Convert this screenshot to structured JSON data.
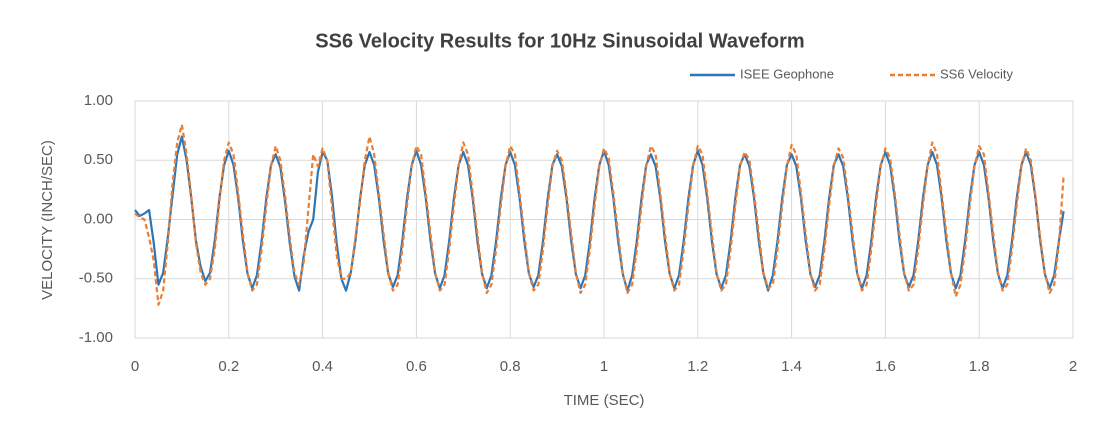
{
  "chart_data": {
    "type": "line",
    "title": "SS6 Velocity Results for 10Hz Sinusoidal Waveform",
    "x_label": "TIME (SEC)",
    "y_label": "VELOCITY (INCH/SEC)",
    "xlim": [
      0,
      2
    ],
    "ylim": [
      -1,
      1
    ],
    "xticks": [
      0,
      0.2,
      0.4,
      0.6,
      0.8,
      1,
      1.2,
      1.4,
      1.6,
      1.8,
      2
    ],
    "yticks": [
      {
        "value": -1,
        "label": "-1.00"
      },
      {
        "value": -0.5,
        "label": "-0.50"
      },
      {
        "value": 0,
        "label": "0.00"
      },
      {
        "value": 0.5,
        "label": "0.50"
      },
      {
        "value": 1,
        "label": "1.00"
      }
    ],
    "grid": true,
    "legend": "top-right",
    "x": [
      0,
      0.01,
      0.02,
      0.03,
      0.04,
      0.05,
      0.06,
      0.07,
      0.08,
      0.09,
      0.1,
      0.11,
      0.12,
      0.13,
      0.14,
      0.15,
      0.16,
      0.17,
      0.18,
      0.19,
      0.2,
      0.21,
      0.22,
      0.23,
      0.24,
      0.25,
      0.26,
      0.27,
      0.28,
      0.29,
      0.3,
      0.31,
      0.32,
      0.33,
      0.34,
      0.35,
      0.36,
      0.37,
      0.38,
      0.39,
      0.4,
      0.41,
      0.42,
      0.43,
      0.44,
      0.45,
      0.46,
      0.47,
      0.48,
      0.49,
      0.5,
      0.51,
      0.52,
      0.53,
      0.54,
      0.55,
      0.56,
      0.57,
      0.58,
      0.59,
      0.6,
      0.61,
      0.62,
      0.63,
      0.64,
      0.65,
      0.66,
      0.67,
      0.68,
      0.69,
      0.7,
      0.71,
      0.72,
      0.73,
      0.74,
      0.75,
      0.76,
      0.77,
      0.78,
      0.79,
      0.8,
      0.81,
      0.82,
      0.83,
      0.84,
      0.85,
      0.86,
      0.87,
      0.88,
      0.89,
      0.9,
      0.91,
      0.92,
      0.93,
      0.94,
      0.95,
      0.96,
      0.97,
      0.98,
      0.99,
      1,
      1.01,
      1.02,
      1.03,
      1.04,
      1.05,
      1.06,
      1.07,
      1.08,
      1.09,
      1.1,
      1.11,
      1.12,
      1.13,
      1.14,
      1.15,
      1.16,
      1.17,
      1.18,
      1.19,
      1.2,
      1.21,
      1.22,
      1.23,
      1.24,
      1.25,
      1.26,
      1.27,
      1.28,
      1.29,
      1.3,
      1.31,
      1.32,
      1.33,
      1.34,
      1.35,
      1.36,
      1.37,
      1.38,
      1.39,
      1.4,
      1.41,
      1.42,
      1.43,
      1.44,
      1.45,
      1.46,
      1.47,
      1.48,
      1.49,
      1.5,
      1.51,
      1.52,
      1.53,
      1.54,
      1.55,
      1.56,
      1.57,
      1.58,
      1.59,
      1.6,
      1.61,
      1.62,
      1.63,
      1.64,
      1.65,
      1.66,
      1.67,
      1.68,
      1.69,
      1.7,
      1.71,
      1.72,
      1.73,
      1.74,
      1.75,
      1.76,
      1.77,
      1.78,
      1.79,
      1.8,
      1.81,
      1.82,
      1.83,
      1.84,
      1.85,
      1.86,
      1.87,
      1.88,
      1.89,
      1.9,
      1.91,
      1.92,
      1.93,
      1.94,
      1.95,
      1.96,
      1.97,
      1.98
    ],
    "series": [
      {
        "name": "ISEE Geophone",
        "color": "#2e75b6",
        "dash": false,
        "values": [
          0.08,
          0.03,
          0.05,
          0.08,
          -0.2,
          -0.55,
          -0.45,
          -0.15,
          0.2,
          0.55,
          0.7,
          0.5,
          0.18,
          -0.18,
          -0.4,
          -0.52,
          -0.45,
          -0.18,
          0.18,
          0.46,
          0.58,
          0.46,
          0.18,
          -0.18,
          -0.46,
          -0.58,
          -0.47,
          -0.18,
          0.18,
          0.46,
          0.55,
          0.44,
          0.15,
          -0.2,
          -0.48,
          -0.6,
          -0.3,
          -0.1,
          0,
          0.4,
          0.57,
          0.5,
          0.2,
          -0.2,
          -0.5,
          -0.6,
          -0.45,
          -0.18,
          0.18,
          0.46,
          0.57,
          0.46,
          0.18,
          -0.18,
          -0.46,
          -0.57,
          -0.47,
          -0.18,
          0.18,
          0.46,
          0.58,
          0.46,
          0.18,
          -0.18,
          -0.46,
          -0.58,
          -0.47,
          -0.18,
          0.18,
          0.46,
          0.57,
          0.46,
          0.18,
          -0.18,
          -0.46,
          -0.58,
          -0.47,
          -0.18,
          0.18,
          0.46,
          0.57,
          0.46,
          0.18,
          -0.18,
          -0.46,
          -0.57,
          -0.47,
          -0.18,
          0.18,
          0.46,
          0.55,
          0.45,
          0.18,
          -0.18,
          -0.46,
          -0.58,
          -0.47,
          -0.18,
          0.18,
          0.46,
          0.58,
          0.46,
          0.18,
          -0.18,
          -0.46,
          -0.6,
          -0.47,
          -0.18,
          0.18,
          0.46,
          0.55,
          0.45,
          0.18,
          -0.18,
          -0.46,
          -0.58,
          -0.47,
          -0.18,
          0.18,
          0.46,
          0.58,
          0.46,
          0.18,
          -0.18,
          -0.46,
          -0.58,
          -0.47,
          -0.18,
          0.18,
          0.46,
          0.55,
          0.45,
          0.18,
          -0.18,
          -0.46,
          -0.6,
          -0.47,
          -0.18,
          0.18,
          0.46,
          0.55,
          0.45,
          0.18,
          -0.18,
          -0.46,
          -0.57,
          -0.47,
          -0.18,
          0.18,
          0.46,
          0.55,
          0.45,
          0.18,
          -0.18,
          -0.46,
          -0.58,
          -0.47,
          -0.18,
          0.18,
          0.46,
          0.57,
          0.46,
          0.18,
          -0.18,
          -0.46,
          -0.57,
          -0.47,
          -0.18,
          0.18,
          0.46,
          0.57,
          0.46,
          0.18,
          -0.18,
          -0.46,
          -0.58,
          -0.47,
          -0.18,
          0.18,
          0.46,
          0.57,
          0.46,
          0.18,
          -0.18,
          -0.46,
          -0.58,
          -0.47,
          -0.18,
          0.18,
          0.46,
          0.57,
          0.46,
          0.18,
          -0.18,
          -0.46,
          -0.58,
          -0.47,
          -0.18,
          0.07
        ]
      },
      {
        "name": "SS6 Velocity",
        "color": "#ed7d31",
        "dash": true,
        "values": [
          0.05,
          0.02,
          0,
          -0.15,
          -0.35,
          -0.72,
          -0.6,
          -0.2,
          0.3,
          0.65,
          0.8,
          0.55,
          0.2,
          -0.2,
          -0.45,
          -0.55,
          -0.5,
          -0.25,
          0.15,
          0.5,
          0.65,
          0.55,
          0.22,
          -0.12,
          -0.45,
          -0.6,
          -0.55,
          -0.25,
          0.12,
          0.45,
          0.62,
          0.5,
          0.2,
          -0.15,
          -0.45,
          -0.55,
          -0.35,
          0.1,
          0.55,
          0.45,
          0.6,
          0.5,
          0.1,
          -0.3,
          -0.5,
          -0.5,
          -0.45,
          -0.15,
          0.15,
          0.5,
          0.7,
          0.55,
          0.22,
          -0.12,
          -0.45,
          -0.6,
          -0.55,
          -0.25,
          0.12,
          0.45,
          0.62,
          0.55,
          0.22,
          -0.12,
          -0.45,
          -0.6,
          -0.55,
          -0.25,
          0.12,
          0.45,
          0.65,
          0.55,
          0.22,
          -0.12,
          -0.45,
          -0.62,
          -0.55,
          -0.25,
          0.12,
          0.45,
          0.62,
          0.55,
          0.22,
          -0.12,
          -0.45,
          -0.6,
          -0.55,
          -0.25,
          0.12,
          0.45,
          0.58,
          0.5,
          0.22,
          -0.12,
          -0.45,
          -0.62,
          -0.55,
          -0.25,
          0.12,
          0.45,
          0.6,
          0.52,
          0.22,
          -0.12,
          -0.45,
          -0.62,
          -0.55,
          -0.25,
          0.12,
          0.45,
          0.62,
          0.55,
          0.22,
          -0.12,
          -0.45,
          -0.6,
          -0.55,
          -0.25,
          0.12,
          0.45,
          0.62,
          0.55,
          0.22,
          -0.12,
          -0.45,
          -0.6,
          -0.55,
          -0.25,
          0.12,
          0.45,
          0.57,
          0.5,
          0.22,
          -0.12,
          -0.45,
          -0.58,
          -0.55,
          -0.25,
          0.12,
          0.45,
          0.63,
          0.55,
          0.22,
          -0.12,
          -0.45,
          -0.6,
          -0.55,
          -0.25,
          0.12,
          0.45,
          0.6,
          0.52,
          0.22,
          -0.12,
          -0.45,
          -0.6,
          -0.55,
          -0.25,
          0.12,
          0.45,
          0.6,
          0.52,
          0.22,
          -0.12,
          -0.45,
          -0.6,
          -0.55,
          -0.25,
          0.12,
          0.45,
          0.65,
          0.55,
          0.22,
          -0.12,
          -0.45,
          -0.65,
          -0.55,
          -0.25,
          0.12,
          0.45,
          0.62,
          0.55,
          0.22,
          -0.12,
          -0.45,
          -0.6,
          -0.55,
          -0.25,
          0.12,
          0.45,
          0.6,
          0.5,
          0.2,
          -0.15,
          -0.45,
          -0.62,
          -0.55,
          -0.2,
          0.37
        ]
      }
    ]
  }
}
